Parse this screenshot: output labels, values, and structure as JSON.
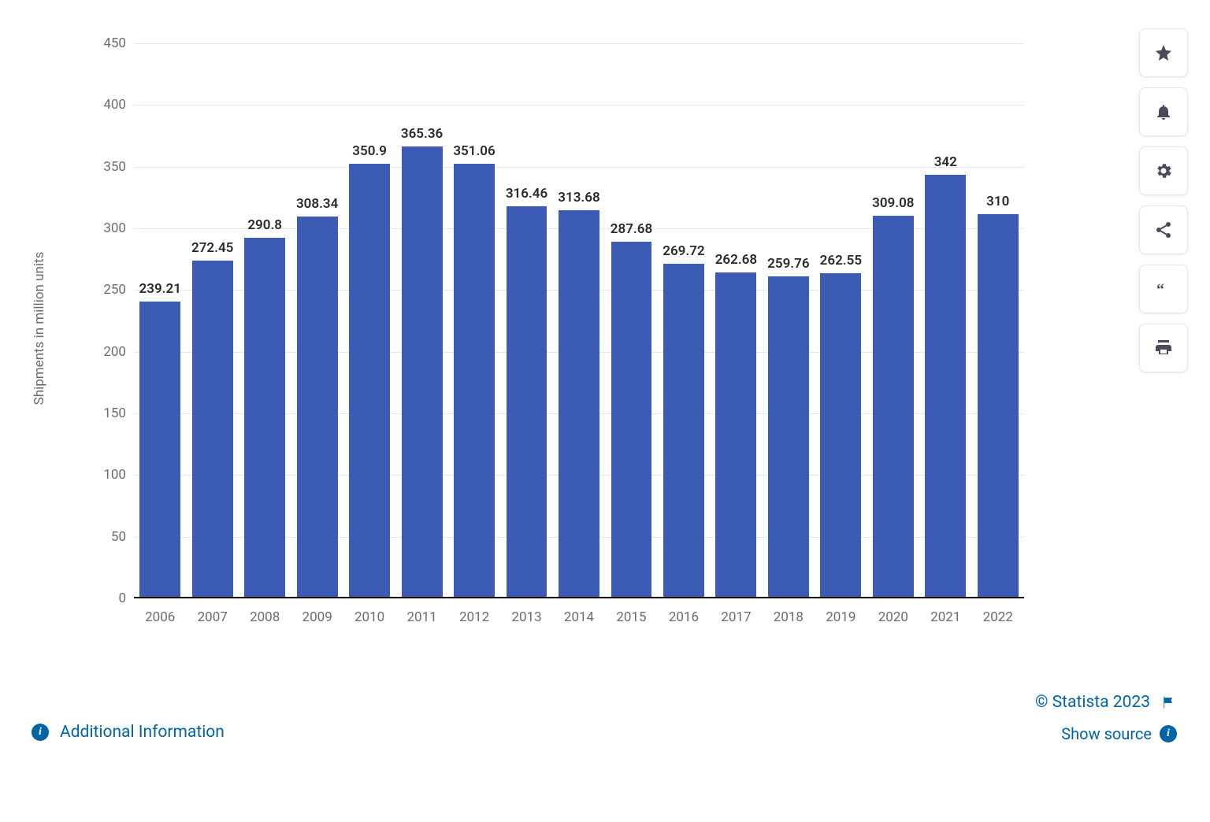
{
  "chart": {
    "type": "bar",
    "categories": [
      "2006",
      "2007",
      "2008",
      "2009",
      "2010",
      "2011",
      "2012",
      "2013",
      "2014",
      "2015",
      "2016",
      "2017",
      "2018",
      "2019",
      "2020",
      "2021",
      "2022"
    ],
    "values": [
      239.21,
      272.45,
      290.8,
      308.34,
      350.9,
      365.36,
      351.06,
      316.46,
      313.68,
      287.68,
      269.72,
      262.68,
      259.76,
      262.55,
      309.08,
      342,
      310
    ],
    "value_labels": [
      "239.21",
      "272.45",
      "290.8",
      "308.34",
      "350.9",
      "365.36",
      "351.06",
      "316.46",
      "313.68",
      "287.68",
      "269.72",
      "262.68",
      "259.76",
      "262.55",
      "309.08",
      "342",
      "310"
    ],
    "bar_color": "#3b5bb5",
    "ylabel": "Shipments in million units",
    "ylim": [
      0,
      450
    ],
    "ytick_step": 50,
    "yticks": [
      0,
      50,
      100,
      150,
      200,
      250,
      300,
      350,
      400,
      450
    ],
    "grid_color": "#e8e8e8",
    "tick_label_color": "#6c6c6c",
    "tick_fontsize": 17,
    "value_label_color": "#2a2a2a",
    "value_label_fontsize": 17,
    "bar_width_ratio": 0.78,
    "background_color": "#ffffff",
    "axis_line_color": "#000000"
  },
  "footer": {
    "copyright": "© Statista 2023",
    "show_source": "Show source",
    "additional_info": "Additional Information"
  },
  "toolbar": {
    "icons": [
      "star-icon",
      "bell-icon",
      "gear-icon",
      "share-icon",
      "quote-icon",
      "print-icon"
    ]
  }
}
